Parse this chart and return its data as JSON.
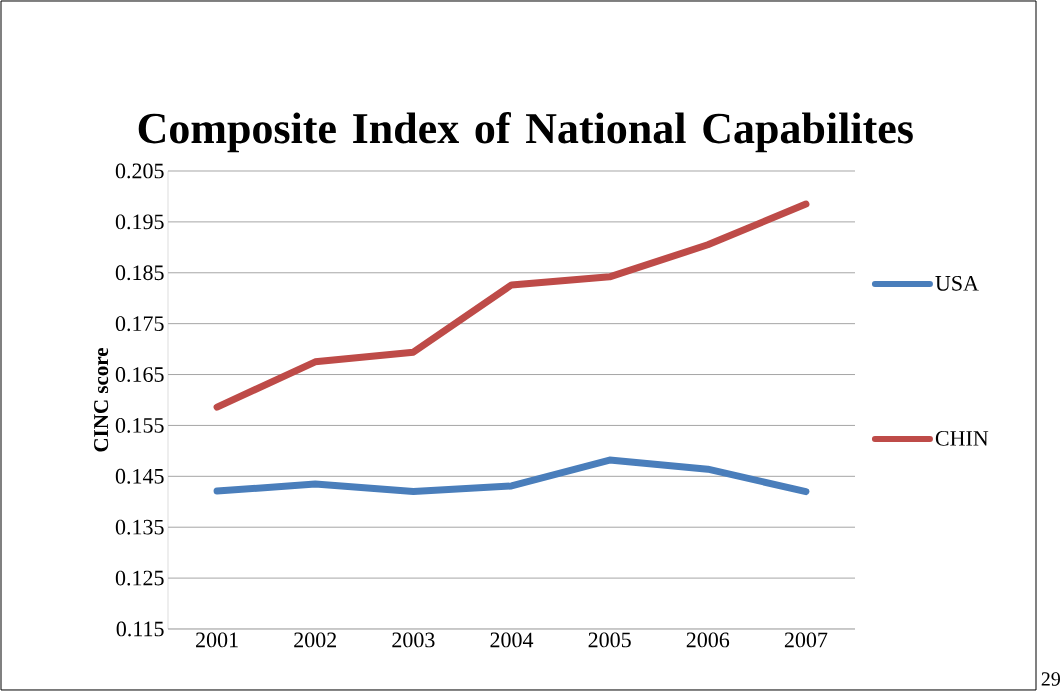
{
  "chart_data": {
    "type": "line",
    "title": "Composite Index of National Capabilites",
    "ylabel": "CINC score",
    "categories": [
      "2001",
      "2002",
      "2003",
      "2004",
      "2005",
      "2006",
      "2007"
    ],
    "series": [
      {
        "name": "USA",
        "color": "#4a7ebb",
        "values": [
          0.1421,
          0.1435,
          0.142,
          0.1431,
          0.1482,
          0.1464,
          0.142
        ]
      },
      {
        "name": "CHIN",
        "color": "#be4b48",
        "values": [
          0.1586,
          0.1675,
          0.1694,
          0.1826,
          0.1842,
          0.1905,
          0.1985
        ]
      }
    ],
    "ylim": [
      0.115,
      0.205
    ],
    "yticks": [
      0.115,
      0.125,
      0.135,
      0.145,
      0.155,
      0.165,
      0.175,
      0.185,
      0.195,
      0.205
    ],
    "grid": "y",
    "legend": "right",
    "marker": "none",
    "line_style": "solid",
    "annotations": [
      "29"
    ]
  }
}
